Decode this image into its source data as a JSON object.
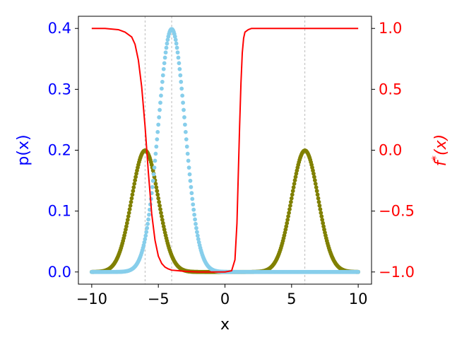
{
  "chart_data": {
    "type": "scatter",
    "xlabel": "x",
    "ylabel_left": "p(x)",
    "ylabel_right": "f*(x)",
    "xlim": [
      -11.0,
      11.0
    ],
    "ylim_left": [
      -0.02,
      0.42
    ],
    "ylim_right": [
      -1.1,
      1.1
    ],
    "x_ticks": [
      -10,
      -5,
      0,
      5,
      10
    ],
    "y_ticks_left": [
      0.0,
      0.1,
      0.2,
      0.3,
      0.4
    ],
    "y_ticks_right": [
      -1.0,
      -0.5,
      0.0,
      0.5,
      1.0
    ],
    "x_tick_labels": [
      "−10",
      "−5",
      "0",
      "5",
      "10"
    ],
    "y_tick_labels_left": [
      "0.0",
      "0.1",
      "0.2",
      "0.3",
      "0.4"
    ],
    "y_tick_labels_right": [
      "−1.0",
      "−0.5",
      "0.0",
      "0.5",
      "1.0"
    ],
    "vlines": [
      -6,
      -4,
      6
    ],
    "colors": {
      "left_axis": "#0000ff",
      "right_axis": "#ff0000",
      "mixture_points": "#808000",
      "single_points": "#87ceeb",
      "curve": "#ff0000",
      "vline": "#aaaaaa"
    },
    "grid": false,
    "series": [
      {
        "kind": "scatter",
        "axis": "left",
        "color": "#808000",
        "x_range": [
          -10,
          10
        ],
        "n_points": 401,
        "formula": "0.5*N(x;-6,1)+0.5*N(x;6,1)",
        "peaks": [
          {
            "x": -6,
            "y": 0.2
          },
          {
            "x": 6,
            "y": 0.2
          }
        ]
      },
      {
        "kind": "scatter",
        "axis": "left",
        "color": "#87ceeb",
        "x_range": [
          -10,
          10
        ],
        "n_points": 401,
        "formula": "N(x;-4,1)",
        "peaks": [
          {
            "x": -4,
            "y": 0.4
          }
        ]
      },
      {
        "kind": "line",
        "axis": "right",
        "color": "#ff0000",
        "x": [
          -10,
          -9,
          -8,
          -7.5,
          -7,
          -6.75,
          -6.5,
          -6.25,
          -6,
          -5.75,
          -5.5,
          -5.25,
          -5,
          -4.75,
          -4.5,
          -4.25,
          -4,
          -3.5,
          -3,
          -2,
          -1,
          0,
          0.5,
          0.75,
          0.9,
          1.0,
          1.1,
          1.2,
          1.3,
          1.4,
          1.5,
          1.75,
          2,
          3,
          5,
          10
        ],
        "y": [
          1.0,
          1.0,
          0.99,
          0.97,
          0.93,
          0.87,
          0.74,
          0.52,
          0.2,
          -0.18,
          -0.52,
          -0.74,
          -0.87,
          -0.93,
          -0.96,
          -0.975,
          -0.985,
          -0.99,
          -0.995,
          -1.0,
          -1.0,
          -1.0,
          -0.99,
          -0.9,
          -0.6,
          -0.2,
          0.2,
          0.55,
          0.8,
          0.92,
          0.97,
          0.99,
          1.0,
          1.0,
          1.0,
          1.0
        ]
      }
    ]
  }
}
